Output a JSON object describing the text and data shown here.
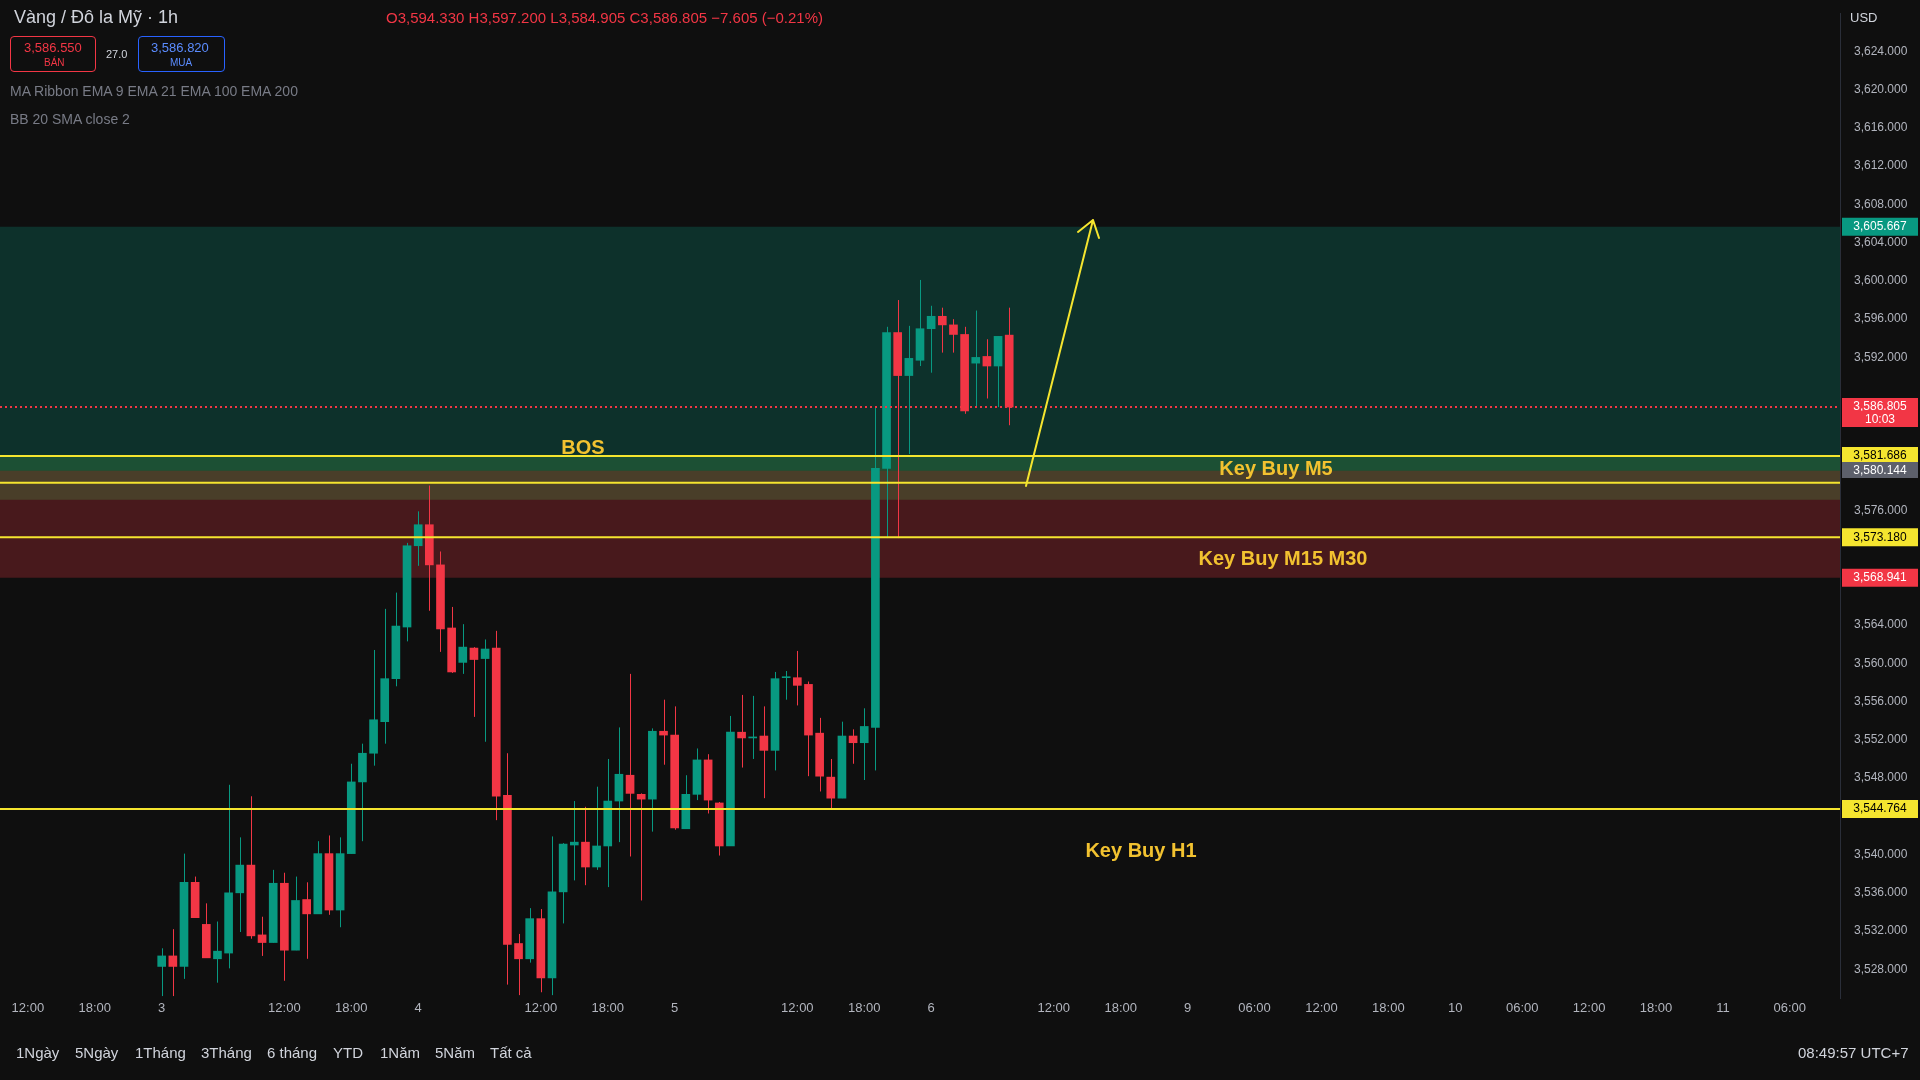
{
  "chart_data": {
    "type": "candlestick",
    "title": "Vàng / Đô la Mỹ · 1h",
    "subtitle": "O3,594.330 H3,597.200 L3,584.905 C3,586.805 −7.605 (−0.21%)",
    "categories": [
      null,
      null,
      "12:00",
      null,
      null,
      null,
      null,
      null,
      "18:00",
      null,
      null,
      null,
      null,
      null,
      "3",
      null,
      null,
      null,
      null,
      null,
      null,
      null,
      null,
      null,
      null,
      "12:00",
      null,
      null,
      null,
      null,
      null,
      "18:00",
      null,
      null,
      null,
      null,
      null,
      "4",
      null,
      null,
      null,
      null,
      null,
      null,
      null,
      null,
      null,
      null,
      "12:00",
      null,
      null,
      null,
      null,
      null,
      "18:00",
      null,
      null,
      null,
      null,
      null,
      "5",
      null,
      null,
      null,
      null,
      null,
      null,
      null,
      null,
      null,
      null,
      "12:00",
      null,
      null,
      null,
      null,
      null,
      "18:00",
      null,
      null,
      null,
      null,
      null,
      "6",
      null,
      null,
      null,
      null,
      null,
      null,
      null,
      null,
      null,
      null,
      "12:00",
      null,
      null,
      null,
      null,
      null,
      "18:00",
      null,
      null,
      null,
      null,
      null,
      "9",
      null,
      null,
      null,
      null,
      null,
      "06:00",
      null,
      null,
      null,
      null,
      null,
      "12:00",
      null,
      null,
      null,
      null,
      null,
      "18:00",
      null,
      null,
      null,
      null,
      null,
      "10",
      null,
      null,
      null,
      null,
      null,
      "06:00",
      null,
      null,
      null,
      null,
      null,
      "12:00",
      null,
      null,
      null,
      null,
      null,
      "18:00",
      null,
      null,
      null,
      null,
      null,
      "11",
      null,
      null,
      null,
      null,
      null,
      "06:00",
      null,
      null,
      null,
      null
    ],
    "ohlc": [
      null,
      null,
      null,
      null,
      null,
      null,
      null,
      null,
      null,
      null,
      null,
      null,
      null,
      null,
      [
        3528.3,
        3530.2,
        3525.2,
        3529.4
      ],
      [
        3529.4,
        3532.2,
        3525.2,
        3528.3
      ],
      [
        3528.3,
        3540.1,
        3527.0,
        3537.1
      ],
      [
        3537.1,
        3537.7,
        3533.4,
        3533.4
      ],
      [
        3532.7,
        3534.9,
        3529.2,
        3529.2
      ],
      [
        3529.1,
        3533.0,
        3526.6,
        3529.9
      ],
      [
        3529.7,
        3547.3,
        3528.1,
        3536.0
      ],
      [
        3536.0,
        3541.8,
        3531.9,
        3538.9
      ],
      [
        3538.9,
        3546.1,
        3531.2,
        3531.5
      ],
      [
        3531.6,
        3533.5,
        3529.4,
        3530.8
      ],
      [
        3530.8,
        3538.4,
        3530.8,
        3537.0
      ],
      [
        3537.0,
        3538.1,
        3526.8,
        3530.0
      ],
      [
        3530.0,
        3537.7,
        3530.0,
        3535.2
      ],
      [
        3535.3,
        3537.1,
        3529.1,
        3533.8
      ],
      [
        3533.8,
        3541.4,
        3533.8,
        3540.1
      ],
      [
        3540.1,
        3542.0,
        3533.7,
        3534.2
      ],
      [
        3534.2,
        3541.8,
        3532.4,
        3540.1
      ],
      [
        3540.1,
        3549.5,
        3540.1,
        3547.6
      ],
      [
        3547.6,
        3551.6,
        3541.4,
        3550.6
      ],
      [
        3550.6,
        3561.4,
        3549.3,
        3554.1
      ],
      [
        3553.9,
        3565.7,
        3551.6,
        3558.4
      ],
      [
        3558.4,
        3567.4,
        3557.6,
        3563.9
      ],
      [
        3563.8,
        3572.6,
        3562.3,
        3572.3
      ],
      [
        3572.3,
        3575.9,
        3570.2,
        3574.5
      ],
      [
        3574.5,
        3578.6,
        3565.5,
        3570.3
      ],
      [
        3570.3,
        3571.7,
        3561.2,
        3563.6
      ],
      [
        3563.7,
        3565.9,
        3559.0,
        3559.1
      ],
      [
        3560.1,
        3564.1,
        3558.9,
        3561.7
      ],
      [
        3561.6,
        3561.7,
        3554.4,
        3560.4
      ],
      [
        3560.5,
        3562.5,
        3551.8,
        3561.5
      ],
      [
        3561.6,
        3563.4,
        3543.6,
        3546.1
      ],
      [
        3546.2,
        3550.6,
        3526.4,
        3530.6
      ],
      [
        3530.7,
        3531.7,
        3525.3,
        3529.1
      ],
      [
        3529.1,
        3534.4,
        3528.7,
        3533.3
      ],
      [
        3533.3,
        3534.3,
        3525.6,
        3527.1
      ],
      [
        3527.1,
        3541.9,
        3525.3,
        3536.1
      ],
      [
        3536.1,
        3541.2,
        3532.8,
        3541.1
      ],
      [
        3541.0,
        3545.6,
        3537.3,
        3541.3
      ],
      [
        3541.3,
        3545.0,
        3536.8,
        3538.7
      ],
      [
        3538.7,
        3547.1,
        3538.4,
        3540.9
      ],
      [
        3540.9,
        3550.0,
        3536.6,
        3545.6
      ],
      [
        3545.6,
        3553.3,
        3541.3,
        3548.4
      ],
      [
        3548.3,
        3558.9,
        3539.8,
        3546.4
      ],
      [
        3546.3,
        3546.4,
        3535.2,
        3545.8
      ],
      [
        3545.8,
        3553.2,
        3542.4,
        3552.9
      ],
      [
        3552.9,
        3556.2,
        3549.4,
        3552.5
      ],
      [
        3552.5,
        3555.5,
        3542.6,
        3542.8
      ],
      [
        3542.7,
        3548.3,
        3542.7,
        3546.3
      ],
      [
        3546.3,
        3551.1,
        3545.7,
        3549.9
      ],
      [
        3549.9,
        3550.5,
        3544.3,
        3545.7
      ],
      [
        3545.4,
        3545.5,
        3539.9,
        3540.9
      ],
      [
        3540.9,
        3554.5,
        3540.9,
        3552.8
      ],
      [
        3552.8,
        3556.7,
        3549.1,
        3552.2
      ],
      [
        3552.2,
        3556.6,
        3550.0,
        3552.3
      ],
      [
        3552.4,
        3555.5,
        3545.9,
        3550.9
      ],
      [
        3550.9,
        3559.1,
        3548.8,
        3558.4
      ],
      [
        3558.5,
        3559.2,
        3556.2,
        3558.6
      ],
      [
        3558.5,
        3561.3,
        3555.6,
        3557.7
      ],
      [
        3557.8,
        3558.1,
        3548.2,
        3552.5
      ],
      [
        3552.7,
        3554.3,
        3546.6,
        3548.2
      ],
      [
        3548.1,
        3550.0,
        3544.8,
        3545.9
      ],
      [
        3545.9,
        3553.9,
        3545.9,
        3552.4
      ],
      [
        3552.4,
        3553.1,
        3549.5,
        3551.7
      ],
      [
        3551.7,
        3555.3,
        3547.8,
        3553.4
      ],
      [
        3553.3,
        3586.8,
        3548.8,
        3580.4
      ],
      [
        3580.4,
        3595.2,
        3573.1,
        3594.6
      ],
      [
        3594.6,
        3598.0,
        3573.1,
        3590.1
      ],
      [
        3590.1,
        3595.3,
        3581.9,
        3591.9
      ],
      [
        3591.7,
        3600.1,
        3591.1,
        3595.0
      ],
      [
        3595.0,
        3597.4,
        3590.4,
        3596.3
      ],
      [
        3596.3,
        3597.2,
        3592.5,
        3595.4
      ],
      [
        3595.4,
        3596.0,
        3592.5,
        3594.4
      ],
      [
        3594.4,
        3595.2,
        3586.1,
        3586.4
      ],
      [
        3591.4,
        3596.9,
        3586.8,
        3592.0
      ],
      [
        3592.1,
        3593.9,
        3587.7,
        3591.1
      ],
      [
        3591.1,
        3594.2,
        3586.8,
        3594.2
      ],
      [
        3594.33,
        3597.2,
        3584.905,
        3586.805
      ],
      null,
      null,
      null,
      null,
      null,
      null,
      null,
      null,
      null,
      null,
      null,
      null,
      null,
      null,
      null,
      null,
      null,
      null,
      null,
      null,
      null,
      null,
      null,
      null,
      null,
      null,
      null,
      null,
      null,
      null,
      null,
      null,
      null,
      null,
      null,
      null,
      null,
      null,
      null,
      null,
      null,
      null,
      null,
      null,
      null,
      null,
      null,
      null,
      null,
      null,
      null,
      null,
      null,
      null,
      null,
      null,
      null,
      null,
      null,
      null,
      null,
      null,
      null,
      null,
      null,
      null,
      null,
      null,
      null,
      null,
      null,
      null,
      null,
      null
    ],
    "colors": [
      null,
      null,
      null,
      null,
      null,
      null,
      null,
      null,
      null,
      null,
      null,
      null,
      null,
      null,
      "#089981",
      "#f23645",
      "#089981",
      "#f23645",
      "#f23645",
      "#089981",
      "#089981",
      "#089981",
      "#f23645",
      "#f23645",
      "#089981",
      "#f23645",
      "#089981",
      "#f23645",
      "#089981",
      "#f23645",
      "#089981",
      "#089981",
      "#089981",
      "#089981",
      "#089981",
      "#089981",
      "#089981",
      "#089981",
      "#f23645",
      "#f23645",
      "#f23645",
      "#089981",
      "#f23645",
      "#089981",
      "#f23645",
      "#f23645",
      "#f23645",
      "#089981",
      "#f23645",
      "#089981",
      "#089981",
      "#089981",
      "#f23645",
      "#089981",
      "#089981",
      "#089981",
      "#f23645",
      "#f23645",
      "#089981",
      "#f23645",
      "#f23645",
      "#089981",
      "#089981",
      "#f23645",
      "#f23645",
      "#089981",
      "#f23645",
      "#089981",
      "#f23645",
      "#089981",
      "#089981",
      "#f23645",
      "#f23645",
      "#f23645",
      "#f23645",
      "#089981",
      "#f23645",
      "#089981",
      "#089981",
      "#089981",
      "#f23645",
      "#089981",
      "#089981",
      "#089981",
      "#f23645",
      "#f23645",
      "#f23645",
      "#089981",
      "#f23645",
      "#089981",
      "#f23645",
      null,
      null,
      null,
      null,
      null,
      null,
      null,
      null,
      null,
      null,
      null,
      null,
      null,
      null,
      null,
      null,
      null,
      null,
      null,
      null,
      null,
      null,
      null,
      null,
      null,
      null,
      null,
      null,
      null,
      null,
      null,
      null,
      null,
      null,
      null,
      null,
      null,
      null,
      null,
      null,
      null,
      null,
      null,
      null,
      null,
      null,
      null,
      null,
      null,
      null,
      null,
      null,
      null,
      null,
      null,
      null,
      null,
      null,
      null,
      null,
      null,
      null,
      null,
      null,
      null,
      null,
      null,
      null,
      null,
      null,
      null,
      null,
      null,
      null
    ],
    "ylim": [
      3525,
      3628
    ],
    "yticks": [
      {
        "value": 3528,
        "label": "3,528.000"
      },
      {
        "value": 3532,
        "label": "3,532.000"
      },
      {
        "value": 3536,
        "label": "3,536.000"
      },
      {
        "value": 3540,
        "label": "3,540.000"
      },
      {
        "value": 3548,
        "label": "3,548.000"
      },
      {
        "value": 3552,
        "label": "3,552.000"
      },
      {
        "value": 3556,
        "label": "3,556.000"
      },
      {
        "value": 3560,
        "label": "3,560.000"
      },
      {
        "value": 3564,
        "label": "3,564.000"
      },
      {
        "value": 3576,
        "label": "3,576.000"
      },
      {
        "value": 3592,
        "label": "3,592.000"
      },
      {
        "value": 3596,
        "label": "3,596.000"
      },
      {
        "value": 3600,
        "label": "3,600.000"
      },
      {
        "value": 3604,
        "label": "3,604.000"
      },
      {
        "value": 3608,
        "label": "3,608.000"
      },
      {
        "value": 3612,
        "label": "3,612.000"
      },
      {
        "value": 3616,
        "label": "3,616.000"
      },
      {
        "value": 3620,
        "label": "3,620.000"
      },
      {
        "value": 3624,
        "label": "3,624.000"
      }
    ],
    "bands": [
      {
        "axis": "y",
        "from": 3580.144,
        "to": 3605.667,
        "label": "3,605.667",
        "color": "#089981"
      },
      {
        "axis": "y",
        "from": 3580.144,
        "to": 3568.941,
        "label": "3,568.941",
        "color": "#f23645"
      },
      {
        "axis": "y",
        "from": 3577.1,
        "to": 3581.8,
        "color": "#4caf50"
      }
    ],
    "ref_lines": [
      {
        "axis": "y",
        "value": 3578.9,
        "color": "#f5e52f",
        "line_style": "solid"
      },
      {
        "axis": "y",
        "value": 3581.686,
        "label": "3,581.686",
        "color": "#f5e52f",
        "line_style": "solid"
      },
      {
        "axis": "y",
        "value": 3573.18,
        "label": "3,573.180",
        "color": "#f5e52f",
        "line_style": "solid"
      },
      {
        "axis": "y",
        "value": 3544.764,
        "label": "3,544.764",
        "color": "#f5e52f",
        "line_style": "solid"
      },
      {
        "axis": "y",
        "value": 3586.805,
        "label": "3,586.805",
        "color": "#f23645",
        "line_style": "dotted"
      }
    ],
    "annotations": [
      "BOS",
      "Key Buy M5",
      "Key Buy M15 M30",
      "Key Buy H1",
      "3,580.144",
      "10:03",
      "3,586.550",
      "BÁN",
      "27.0",
      "3,586.820",
      "MUA",
      "MA Ribbon EMA 9 EMA 21 EMA 100 EMA 200",
      "BB 20 SMA close 2",
      "USD",
      "1Ngày",
      "5Ngày",
      "1Tháng",
      "3Tháng",
      "6 tháng",
      "YTD",
      "1Năm",
      "5Năm",
      "Tất cả",
      "08:49:57 UTC+7"
    ]
  }
}
